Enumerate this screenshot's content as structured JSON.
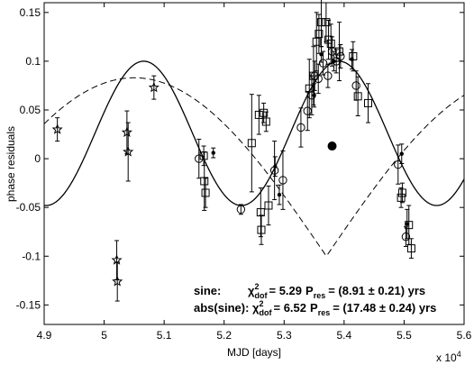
{
  "chart_data": {
    "type": "scatter",
    "xlabel": "MJD [days]",
    "ylabel": "phase residuals",
    "x_multiplier": "x 10",
    "x_multiplier_exp": "4",
    "xlim": [
      4.9,
      5.6
    ],
    "ylim": [
      -0.17,
      0.16
    ],
    "x_ticks": [
      "4.9",
      "5",
      "5.1",
      "5.2",
      "5.3",
      "5.4",
      "5.5",
      "5.6"
    ],
    "y_ticks": [
      "0.15",
      "0.1",
      "0.05",
      "0",
      "-0.05",
      "-0.1",
      "-0.15"
    ],
    "grid": false,
    "annotations": [
      {
        "label": "sine:",
        "chi": "χ",
        "chi_sup": "2",
        "chi_sub": "dof",
        "chi_value": "= 5.29",
        "p": "P",
        "p_sub": "res",
        "p_value": "= (8.91 ± 0.21) yrs"
      },
      {
        "label": "abs(sine):",
        "chi": "χ",
        "chi_sup": "2",
        "chi_sub": "dof",
        "chi_value": "= 6.52",
        "p": "P",
        "p_sub": "res",
        "p_value": "= (17.48 ± 0.24) yrs"
      }
    ],
    "sine_fit": {
      "amplitude": 0.074,
      "offset": 0.026,
      "period": 0.3255,
      "peak_x": 5.066
    },
    "abs_sine_fit": {
      "amplitude": 0.183,
      "offset": -0.1,
      "period": 0.641,
      "peak_x": 5.05
    },
    "series": [
      {
        "marker": "pentagram",
        "points": [
          {
            "x": 4.922,
            "y": 0.03,
            "err": 0.012
          },
          {
            "x": 5.021,
            "y": -0.104,
            "err": 0.02
          },
          {
            "x": 5.022,
            "y": -0.126,
            "err": 0.02
          },
          {
            "x": 5.038,
            "y": 0.027,
            "err": 0.022
          },
          {
            "x": 5.04,
            "y": 0.007,
            "err": 0.03
          },
          {
            "x": 5.083,
            "y": 0.073,
            "err": 0.012
          }
        ]
      },
      {
        "marker": "circle",
        "points": [
          {
            "x": 5.158,
            "y": 0.0,
            "err": 0.02
          },
          {
            "x": 5.228,
            "y": -0.052,
            "err": 0.005
          },
          {
            "x": 5.284,
            "y": -0.012,
            "err": 0.03
          },
          {
            "x": 5.298,
            "y": -0.022,
            "err": 0.03
          },
          {
            "x": 5.328,
            "y": 0.032,
            "err": 0.02
          },
          {
            "x": 5.339,
            "y": 0.049,
            "err": 0.02
          },
          {
            "x": 5.346,
            "y": 0.065,
            "err": 0.02
          },
          {
            "x": 5.351,
            "y": 0.085,
            "err": 0.015
          },
          {
            "x": 5.357,
            "y": 0.082,
            "err": 0.015
          },
          {
            "x": 5.365,
            "y": 0.098,
            "err": 0.012
          },
          {
            "x": 5.373,
            "y": 0.085,
            "err": 0.012
          },
          {
            "x": 5.38,
            "y": 0.11,
            "err": 0.015
          },
          {
            "x": 5.387,
            "y": 0.1,
            "err": 0.012
          },
          {
            "x": 5.394,
            "y": 0.105,
            "err": 0.012
          },
          {
            "x": 5.42,
            "y": 0.075,
            "err": 0.015
          },
          {
            "x": 5.49,
            "y": -0.006,
            "err": 0.02
          },
          {
            "x": 5.503,
            "y": -0.08,
            "err": 0.01
          }
        ]
      },
      {
        "marker": "square",
        "points": [
          {
            "x": 5.166,
            "y": 0.003,
            "err": 0.01
          },
          {
            "x": 5.167,
            "y": -0.023,
            "err": 0.03
          },
          {
            "x": 5.169,
            "y": -0.035,
            "err": 0.015
          },
          {
            "x": 5.246,
            "y": 0.016,
            "err": 0.05
          },
          {
            "x": 5.258,
            "y": 0.045,
            "err": 0.02
          },
          {
            "x": 5.261,
            "y": -0.055,
            "err": 0.025
          },
          {
            "x": 5.262,
            "y": -0.073,
            "err": 0.015
          },
          {
            "x": 5.266,
            "y": 0.047,
            "err": 0.01
          },
          {
            "x": 5.27,
            "y": 0.038,
            "err": 0.01
          },
          {
            "x": 5.274,
            "y": -0.048,
            "err": 0.02
          },
          {
            "x": 5.342,
            "y": 0.072,
            "err": 0.03
          },
          {
            "x": 5.349,
            "y": 0.085,
            "err": 0.03
          },
          {
            "x": 5.354,
            "y": 0.12,
            "err": 0.03
          },
          {
            "x": 5.358,
            "y": 0.128,
            "err": 0.02
          },
          {
            "x": 5.362,
            "y": 0.14,
            "err": 0.025
          },
          {
            "x": 5.37,
            "y": 0.14,
            "err": 0.02
          },
          {
            "x": 5.374,
            "y": 0.122,
            "err": 0.02
          },
          {
            "x": 5.378,
            "y": 0.118,
            "err": 0.02
          },
          {
            "x": 5.392,
            "y": 0.11,
            "err": 0.03
          },
          {
            "x": 5.415,
            "y": 0.105,
            "err": 0.015
          },
          {
            "x": 5.423,
            "y": 0.064,
            "err": 0.02
          },
          {
            "x": 5.44,
            "y": 0.057,
            "err": 0.02
          },
          {
            "x": 5.495,
            "y": -0.04,
            "err": 0.01
          },
          {
            "x": 5.497,
            "y": -0.035,
            "err": 0.01
          },
          {
            "x": 5.508,
            "y": -0.068,
            "err": 0.02
          },
          {
            "x": 5.512,
            "y": -0.092,
            "err": 0.01
          }
        ]
      },
      {
        "marker": "dot",
        "points": [
          {
            "x": 5.182,
            "y": 0.006,
            "err": 0.005
          },
          {
            "x": 5.285,
            "y": -0.008,
            "err": 0.01
          },
          {
            "x": 5.292,
            "y": -0.037,
            "err": 0.01
          },
          {
            "x": 5.35,
            "y": 0.065,
            "err": 0.012
          },
          {
            "x": 5.362,
            "y": 0.107,
            "err": 0.008
          },
          {
            "x": 5.383,
            "y": 0.1,
            "err": 0.01
          },
          {
            "x": 5.413,
            "y": 0.102,
            "err": 0.01
          },
          {
            "x": 5.496,
            "y": 0.005,
            "err": 0.01
          },
          {
            "x": 5.505,
            "y": -0.067,
            "err": 0.015
          }
        ]
      },
      {
        "marker": "big-dot",
        "points": [
          {
            "x": 5.38,
            "y": 0.013,
            "err": 0
          }
        ]
      }
    ]
  }
}
